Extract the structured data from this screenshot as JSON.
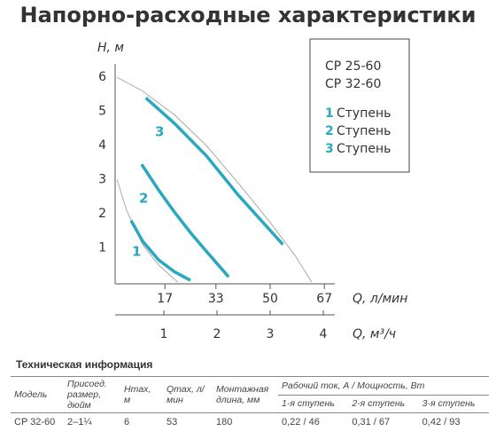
{
  "title": "Напорно-расходные характеристики",
  "chart_data": {
    "type": "line",
    "ylabel": "H, м",
    "xlabel": "Q, л/мин",
    "x2label": "Q, м³/ч",
    "xlim": [
      0,
      70
    ],
    "xticks": [
      17,
      33,
      50,
      67
    ],
    "x2lim": [
      0,
      4.2
    ],
    "x2ticks": [
      1,
      2,
      3,
      4
    ],
    "ylim": [
      0,
      6.5
    ],
    "yticks": [
      1,
      2,
      3,
      4,
      5,
      6
    ],
    "models": [
      "CP 25-60",
      "CP 32-60"
    ],
    "legend_label": "Ступень",
    "series": [
      {
        "color": "#aaaaaa",
        "x": [
          2,
          10,
          20,
          30,
          40,
          50,
          58,
          63
        ],
        "values": [
          6.0,
          5.6,
          4.9,
          4.0,
          2.9,
          1.75,
          0.75,
          0
        ]
      },
      {
        "color": "#aaaaaa",
        "x": [
          2,
          5,
          10,
          15,
          21
        ],
        "values": [
          3.0,
          2.1,
          1.1,
          0.5,
          0
        ]
      },
      {
        "name": "1",
        "color": "#2aa8c0",
        "x": [
          6.4,
          10,
          15,
          20,
          25
        ],
        "values": [
          1.8,
          1.2,
          0.65,
          0.3,
          0.05
        ]
      },
      {
        "name": "2",
        "color": "#2aa8c0",
        "x": [
          9.7,
          15,
          20,
          25,
          30,
          37
        ],
        "values": [
          3.45,
          2.7,
          2.05,
          1.45,
          0.9,
          0.15
        ]
      },
      {
        "name": "3",
        "color": "#2aa8c0",
        "x": [
          11,
          20,
          30,
          40,
          54
        ],
        "values": [
          5.4,
          4.65,
          3.7,
          2.55,
          1.1
        ]
      }
    ]
  },
  "table": {
    "title": "Техническая информация",
    "header": [
      "Модель",
      "Присоед. размер, дюйм",
      "Hmax, м",
      "Qmax, л/мин",
      "Монтажная длина, мм",
      "Рабочий ток, А / Мощность, Вт"
    ],
    "subheader": [
      "1-я ступень",
      "2-я ступень",
      "3-я ступень"
    ],
    "rows": [
      [
        "CP 32-60",
        "2–1¼",
        "6",
        "53",
        "180",
        "0,22 / 46",
        "0,31 / 67",
        "0,42 / 93"
      ]
    ]
  }
}
